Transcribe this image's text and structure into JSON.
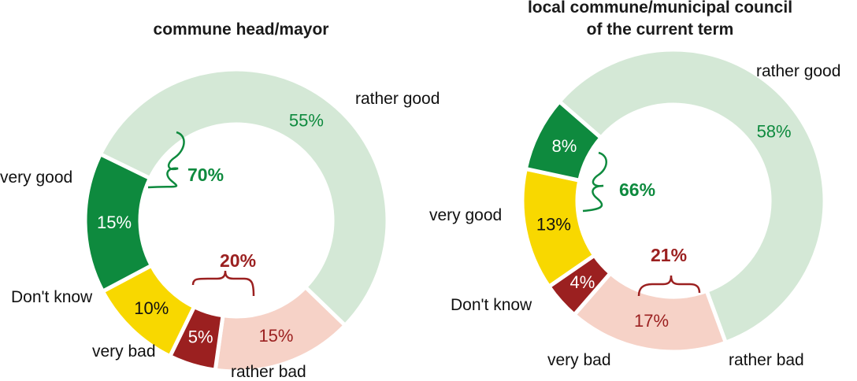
{
  "colors": {
    "very_good": "#0e8a3e",
    "rather_good": "#d4e8d6",
    "dont_know": "#f8d800",
    "very_bad": "#9b2020",
    "rather_bad": "#f6d2c7",
    "green_text": "#0e8a3e",
    "red_text": "#9b2020",
    "dark_text": "#111111"
  },
  "chart_data": [
    {
      "type": "pie",
      "title_lines": [
        "commune head/mayor"
      ],
      "categories": [
        "rather good",
        "rather bad",
        "very bad",
        "Don't know",
        "very good"
      ],
      "values": [
        55,
        15,
        5,
        10,
        15
      ],
      "value_labels": [
        "55%",
        "15%",
        "5%",
        "10%",
        "15%"
      ],
      "positive_total": "70%",
      "negative_total": "20%"
    },
    {
      "type": "pie",
      "title_lines": [
        "local commune/municipal council",
        "of the current term"
      ],
      "categories": [
        "rather good",
        "rather bad",
        "very bad",
        "Don't know",
        "very good"
      ],
      "values": [
        58,
        17,
        4,
        13,
        8
      ],
      "value_labels": [
        "58%",
        "17%",
        "4%",
        "13%",
        "8%"
      ],
      "positive_total": "66%",
      "negative_total": "21%"
    }
  ]
}
